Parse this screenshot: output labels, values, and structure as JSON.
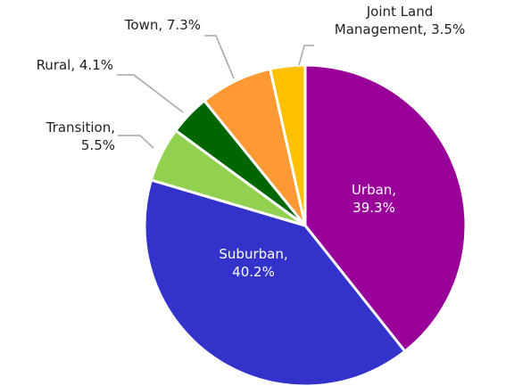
{
  "chart_data": {
    "type": "pie",
    "categories": [
      "Urban",
      "Suburban",
      "Transition",
      "Rural",
      "Town",
      "Joint Land Management"
    ],
    "values": [
      39.3,
      40.2,
      5.5,
      4.1,
      7.3,
      3.5
    ],
    "value_labels": [
      "Urban,\n39.3%",
      "Suburban,\n40.2%",
      "Transition,\n5.5%",
      "Rural, 4.1%",
      "Town, 7.3%",
      "Joint Land\nManagement, 3.5%"
    ],
    "colors": [
      "#990099",
      "#3333cc",
      "#92d050",
      "#006600",
      "#ff9933",
      "#ffc000"
    ]
  }
}
